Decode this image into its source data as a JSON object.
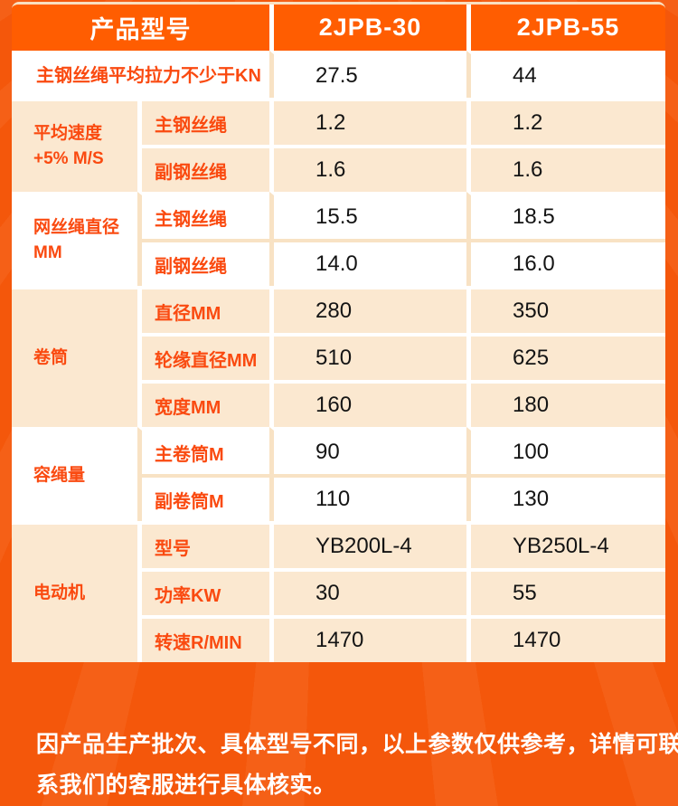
{
  "colors": {
    "background_orange": "#F4570B",
    "header_orange": "#FF5D01",
    "row_peach": "#FBE8D0",
    "separator_cream": "#F8E2C4",
    "label_red": "#FA4A10",
    "value_black": "#141414"
  },
  "table": {
    "header": {
      "model_label": "产品型号",
      "models": [
        "2JPB-30",
        "2JPB-55"
      ]
    },
    "sections": [
      {
        "group": "主钢丝绳平均拉力不少于KN",
        "rows": [
          {
            "sub": "",
            "values": [
              "27.5",
              "44"
            ]
          }
        ]
      },
      {
        "group": "平均速度+5% M/S",
        "rows": [
          {
            "sub": "主钢丝绳",
            "values": [
              "1.2",
              "1.2"
            ]
          },
          {
            "sub": "副钢丝绳",
            "values": [
              "1.6",
              "1.6"
            ]
          }
        ]
      },
      {
        "group": "网丝绳直径MM",
        "rows": [
          {
            "sub": "主钢丝绳",
            "values": [
              "15.5",
              "18.5"
            ]
          },
          {
            "sub": "副钢丝绳",
            "values": [
              "14.0",
              "16.0"
            ]
          }
        ]
      },
      {
        "group": "卷筒",
        "rows": [
          {
            "sub": "直径MM",
            "values": [
              "280",
              "350"
            ]
          },
          {
            "sub": "轮缘直径MM",
            "values": [
              "510",
              "625"
            ]
          },
          {
            "sub": "宽度MM",
            "values": [
              "160",
              "180"
            ]
          }
        ]
      },
      {
        "group": "容绳量",
        "rows": [
          {
            "sub": "主卷筒M",
            "values": [
              "90",
              "100"
            ]
          },
          {
            "sub": "副卷筒M",
            "values": [
              "110",
              "130"
            ]
          }
        ]
      },
      {
        "group": "电动机",
        "rows": [
          {
            "sub": "型号",
            "values": [
              "YB200L-4",
              "YB250L-4"
            ]
          },
          {
            "sub": "功率KW",
            "values": [
              "30",
              "55"
            ]
          },
          {
            "sub": "转速R/MIN",
            "values": [
              "1470",
              "1470"
            ]
          }
        ]
      }
    ]
  },
  "footer": {
    "lines": [
      "因产品生产批次、具体型号不同，以上参数仅供参考，详情可联",
      "系我们的客服进行具体核实。"
    ]
  }
}
